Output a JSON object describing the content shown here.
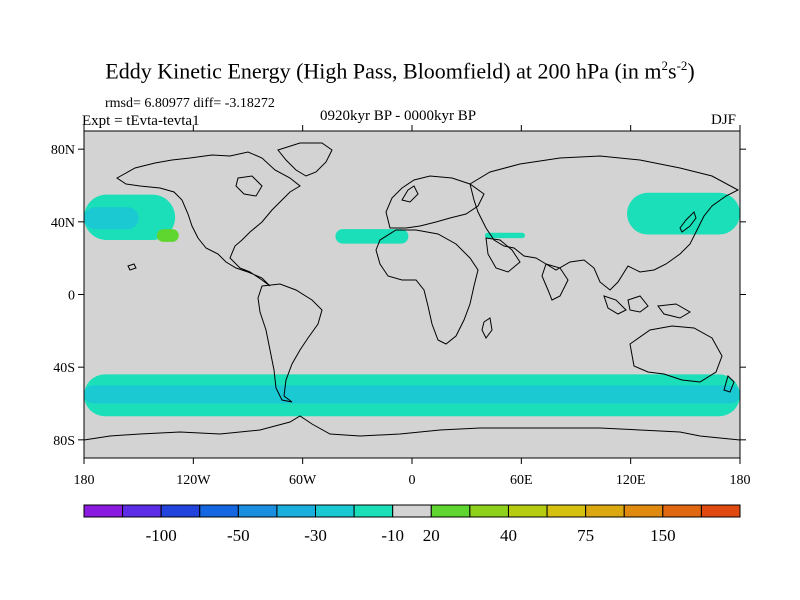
{
  "title": {
    "main": "Eddy Kinetic Energy (High Pass, Bloomfield) at 200 hPa (in m",
    "sup1": "2",
    "mid": "s",
    "sup2": "-2",
    "close": ")"
  },
  "stats": "rmsd= 6.80977 diff= -3.18272",
  "expt": "Expt = tEvta-tevta1",
  "period": "0920kyr BP - 0000kyr BP",
  "season": "DJF",
  "map": {
    "land_fill": "#d3d3d3",
    "coast_color": "#000000"
  },
  "axes": {
    "lat_ticks": [
      "80N",
      "40N",
      "0",
      "40S",
      "80S"
    ],
    "lat_values": [
      80,
      40,
      0,
      -40,
      -80
    ],
    "lon_ticks": [
      "180",
      "120W",
      "60W",
      "0",
      "60E",
      "120E",
      "180"
    ],
    "lon_values": [
      -180,
      -120,
      -60,
      0,
      60,
      120,
      180
    ]
  },
  "colorbar": {
    "colors": [
      "#8a1ae0",
      "#5c2ce6",
      "#2244dd",
      "#1467e0",
      "#1a8fe0",
      "#1ab0dd",
      "#1ac9d2",
      "#1adfb8",
      "#d3d3d3",
      "#5fd630",
      "#8ed11a",
      "#b6cc10",
      "#d6c010",
      "#dca810",
      "#e08a10",
      "#e06810",
      "#e04a10"
    ],
    "labels": [
      "-100",
      "-50",
      "-30",
      "-10",
      "20",
      "40",
      "75",
      "150"
    ]
  },
  "chart_data": {
    "type": "map",
    "variable": "Eddy Kinetic Energy difference",
    "units": "m2 s-2",
    "level": "200 hPa",
    "season": "DJF",
    "regions": [
      {
        "name": "North Pacific (east)",
        "lon": [
          -180,
          -130
        ],
        "lat": [
          30,
          55
        ],
        "band": "-30 to -10",
        "color": "#1adfb8"
      },
      {
        "name": "North Pacific (east) core",
        "lon": [
          -180,
          -150
        ],
        "lat": [
          36,
          48
        ],
        "band": "-50 to -30",
        "color": "#1ac9d2"
      },
      {
        "name": "Subtropical East Pacific",
        "lon": [
          -140,
          -128
        ],
        "lat": [
          29,
          36
        ],
        "band": "10 to 20",
        "color": "#5fd630"
      },
      {
        "name": "North Atlantic / Africa",
        "lon": [
          -42,
          -2
        ],
        "lat": [
          28,
          36
        ],
        "band": "-30 to -10",
        "color": "#1adfb8"
      },
      {
        "name": "Middle East",
        "lon": [
          40,
          62
        ],
        "lat": [
          31,
          34
        ],
        "band": "-30 to -10",
        "color": "#1adfb8"
      },
      {
        "name": "North Pacific (west)",
        "lon": [
          118,
          180
        ],
        "lat": [
          33,
          56
        ],
        "band": "-30 to -10",
        "color": "#1adfb8"
      },
      {
        "name": "Southern Ocean storm track",
        "lon": [
          -180,
          180
        ],
        "lat": [
          -67,
          -44
        ],
        "band": "-30 to -10",
        "color": "#1adfb8"
      },
      {
        "name": "Southern Ocean core",
        "lon": [
          -180,
          180
        ],
        "lat": [
          -60,
          -50
        ],
        "band": "-50 to -30",
        "color": "#1ac9d2"
      }
    ]
  }
}
